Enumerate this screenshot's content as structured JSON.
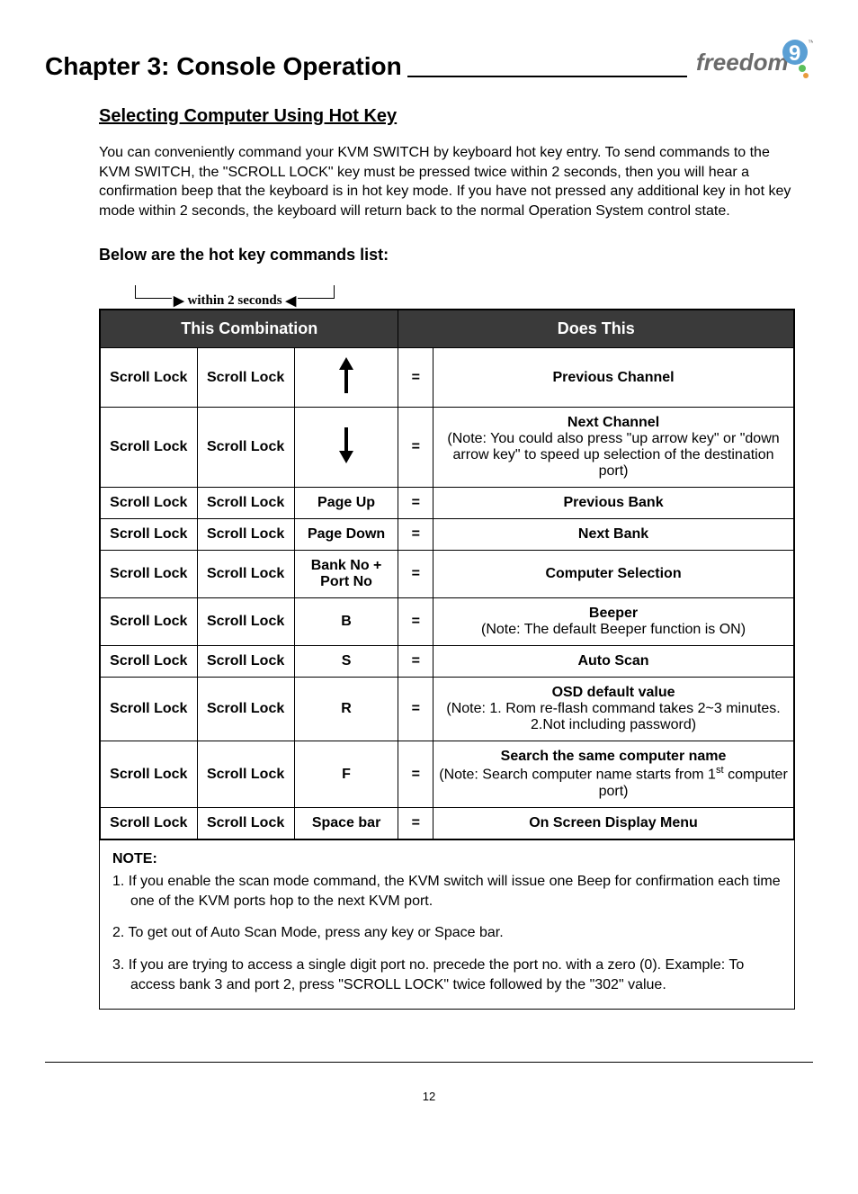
{
  "header": {
    "chapter_title": "Chapter 3: Console Operation",
    "logo_text": "freedom",
    "logo_tm": "™"
  },
  "section": {
    "title": "Selecting Computer Using Hot Key",
    "intro": "You can conveniently command your KVM SWITCH by keyboard hot key entry. To send commands to the KVM SWITCH, the \"SCROLL LOCK\" key must be pressed twice within 2 seconds, then you will hear a confirmation beep that the keyboard is in hot key mode. If you have not pressed any additional key in hot key mode within 2 seconds, the keyboard will return back to the normal Operation System control state.",
    "sub_heading": "Below are the hot key commands list:",
    "within_label": "within 2 seconds"
  },
  "table": {
    "header_left": "This Combination",
    "header_right": "Does This",
    "header_bg": "#3a3a3a",
    "header_fg": "#ffffff",
    "border_color": "#000000",
    "scroll_lock": "Scroll Lock",
    "eq": "=",
    "rows": [
      {
        "key3_type": "arrow-up",
        "key3_text": "",
        "result_bold": "Previous Channel",
        "result_note": "",
        "row_class": "tall-row"
      },
      {
        "key3_type": "arrow-down",
        "key3_text": "",
        "result_bold": "Next Channel",
        "result_note": "(Note: You could also press \"up arrow key\" or \"down arrow key\" to speed up selection of the destination port)",
        "row_class": "med-row"
      },
      {
        "key3_type": "text",
        "key3_text": "Page Up",
        "result_bold": "Previous Bank",
        "result_note": "",
        "row_class": ""
      },
      {
        "key3_type": "text",
        "key3_text": "Page Down",
        "result_bold": "Next Bank",
        "result_note": "",
        "row_class": ""
      },
      {
        "key3_type": "text",
        "key3_text": "Bank No + Port No",
        "result_bold": "Computer Selection",
        "result_note": "",
        "row_class": "med-row"
      },
      {
        "key3_type": "text",
        "key3_text": "B",
        "result_bold": "Beeper",
        "result_note": "(Note: The default Beeper function is ON)",
        "row_class": ""
      },
      {
        "key3_type": "text",
        "key3_text": "S",
        "result_bold": "Auto Scan",
        "result_note": "",
        "row_class": ""
      },
      {
        "key3_type": "text",
        "key3_text": "R",
        "result_bold": "OSD default value",
        "result_note": "(Note: 1. Rom re-flash command takes 2~3 minutes. 2.Not including password)",
        "row_class": ""
      },
      {
        "key3_type": "text",
        "key3_text": "F",
        "result_bold": "Search the same computer name",
        "result_note": "(Note: Search computer name starts from 1<sup>st</sup> computer port)",
        "row_class": ""
      },
      {
        "key3_type": "text",
        "key3_text": "Space bar",
        "result_bold": "On Screen Display Menu",
        "result_note": "",
        "row_class": ""
      }
    ]
  },
  "notes": {
    "title": "NOTE:",
    "items": [
      "1. If you enable the scan mode command, the KVM switch will issue one Beep for confirmation each time one of the KVM ports hop to the next KVM port.",
      "2. To get out of Auto Scan Mode, press any key or Space bar.",
      "3. If you are trying to access a single digit port no. precede the port no. with a zero (0). Example: To access bank 3 and port 2, press \"SCROLL LOCK\" twice followed by the \"302\" value."
    ]
  },
  "page_number": "12",
  "logo_colors": {
    "text": "#6a6a6a",
    "nine_top": "#5a9fd4",
    "nine_mid": "#5bbf5b",
    "nine_bot": "#e89b3c"
  }
}
